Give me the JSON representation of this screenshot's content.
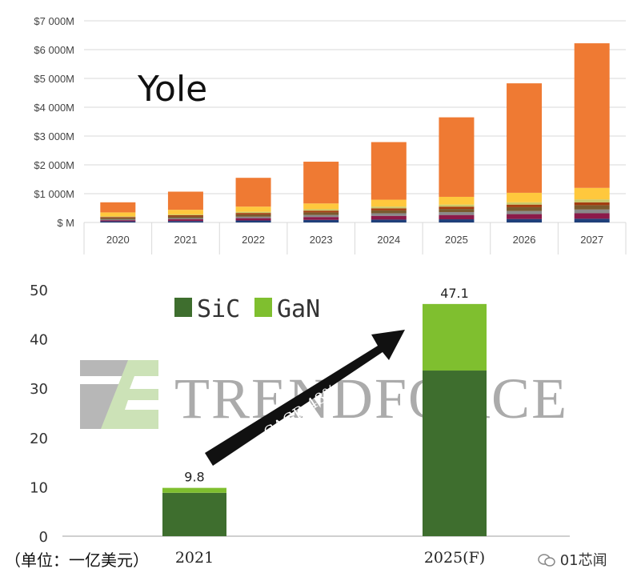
{
  "chart_data": [
    {
      "type": "bar",
      "stacked": true,
      "watermark": "Yole",
      "categories": [
        "2020",
        "2021",
        "2022",
        "2023",
        "2024",
        "2025",
        "2026",
        "2027"
      ],
      "ytick_labels": [
        "$ M",
        "$1 000M",
        "$2 000M",
        "$3 000M",
        "$4 000M",
        "$5 000M",
        "$6 000M",
        "$7 000M"
      ],
      "ylim": [
        0,
        7000
      ],
      "grid": true,
      "series": [
        {
          "color": "#1f3f7a",
          "values": [
            40,
            50,
            70,
            90,
            100,
            110,
            120,
            130
          ]
        },
        {
          "color": "#8b1a4a",
          "values": [
            40,
            60,
            80,
            100,
            130,
            150,
            170,
            190
          ]
        },
        {
          "color": "#8a8a8a",
          "values": [
            30,
            40,
            50,
            70,
            90,
            100,
            110,
            130
          ]
        },
        {
          "color": "#7a5a2e",
          "values": [
            50,
            60,
            80,
            90,
            100,
            110,
            130,
            150
          ]
        },
        {
          "color": "#a33d10",
          "values": [
            30,
            40,
            50,
            60,
            70,
            80,
            90,
            100
          ]
        },
        {
          "color": "#c9c96a",
          "values": [
            20,
            30,
            40,
            50,
            60,
            70,
            80,
            100
          ]
        },
        {
          "color": "#ffc83d",
          "values": [
            140,
            160,
            180,
            200,
            240,
            270,
            330,
            400
          ]
        },
        {
          "color": "#ef7a33",
          "values": [
            350,
            630,
            1000,
            1450,
            2000,
            2760,
            3800,
            5020
          ]
        }
      ]
    },
    {
      "type": "bar",
      "stacked": true,
      "categories": [
        "2021",
        "2025(F)"
      ],
      "ylim": [
        0,
        50
      ],
      "yticks": [
        0,
        10,
        20,
        30,
        40,
        50
      ],
      "totals_labels": [
        "9.8",
        "47.1"
      ],
      "totals": [
        9.8,
        47.1
      ],
      "series": [
        {
          "name": "SiC",
          "color": "#3e6e2e",
          "values": [
            8.8,
            33.6
          ]
        },
        {
          "name": "GaN",
          "color": "#7fbf2f",
          "values": [
            1.0,
            13.5
          ]
        }
      ],
      "annotation": "CAGR 48%",
      "watermark": "TRENDFORCE"
    }
  ],
  "footer": {
    "unit_note": "（单位：一亿美元）",
    "credit": "01芯闻"
  }
}
